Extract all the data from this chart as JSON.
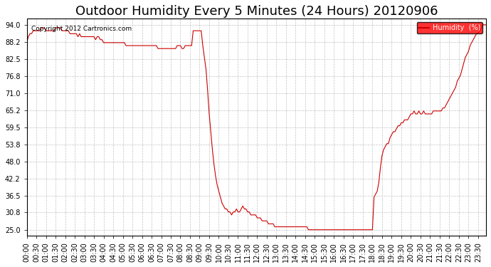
{
  "title": "Outdoor Humidity Every 5 Minutes (24 Hours) 20120906",
  "ylabel": "",
  "copyright_text": "Copyright 2012 Cartronics.com",
  "legend_label": "Humidity  (%)",
  "line_color": "#cc0000",
  "background_color": "#ffffff",
  "grid_color": "#aaaaaa",
  "yticks": [
    25.0,
    30.8,
    36.5,
    42.2,
    48.0,
    53.8,
    59.5,
    65.2,
    71.0,
    76.8,
    82.5,
    88.2,
    94.0
  ],
  "ylim": [
    23.0,
    96.0
  ],
  "xlim_start": 0,
  "xlim_end": 287,
  "xtick_interval": 6,
  "title_fontsize": 13,
  "tick_fontsize": 7,
  "humidity_data": [
    88,
    90,
    91,
    91,
    92,
    92,
    92,
    92,
    92,
    93,
    93,
    93,
    92,
    92,
    92,
    92,
    92,
    92,
    93,
    93,
    93,
    93,
    92,
    92,
    92,
    92,
    92,
    91,
    91,
    91,
    91,
    91,
    90,
    91,
    90,
    90,
    90,
    90,
    90,
    90,
    90,
    90,
    90,
    89,
    90,
    90,
    89,
    89,
    88,
    88,
    88,
    88,
    88,
    88,
    88,
    88,
    88,
    88,
    88,
    88,
    88,
    88,
    87,
    87,
    87,
    87,
    87,
    87,
    87,
    87,
    87,
    87,
    87,
    87,
    87,
    87,
    87,
    87,
    87,
    87,
    87,
    87,
    86,
    86,
    86,
    86,
    86,
    86,
    86,
    86,
    86,
    86,
    86,
    86,
    87,
    87,
    87,
    86,
    86,
    87,
    87,
    87,
    87,
    87,
    92,
    92,
    92,
    92,
    92,
    92,
    87,
    83,
    79,
    72,
    64,
    58,
    52,
    47,
    43,
    40,
    38,
    36,
    34,
    33,
    32,
    32,
    31,
    31,
    30,
    31,
    31,
    32,
    31,
    31,
    32,
    33,
    32,
    32,
    31,
    31,
    30,
    30,
    30,
    30,
    29,
    29,
    29,
    28,
    28,
    28,
    28,
    27,
    27,
    27,
    27,
    26,
    26,
    26,
    26,
    26,
    26,
    26,
    26,
    26,
    26,
    26,
    26,
    26,
    26,
    26,
    26,
    26,
    26,
    26,
    26,
    26,
    25,
    25,
    25,
    25,
    25,
    25,
    25,
    25,
    25,
    25,
    25,
    25,
    25,
    25,
    25,
    25,
    25,
    25,
    25,
    25,
    25,
    25,
    25,
    25,
    25,
    25,
    25,
    25,
    25,
    25,
    25,
    25,
    25,
    25,
    25,
    25,
    25,
    25,
    25,
    25,
    25,
    36,
    37,
    38,
    41,
    46,
    50,
    52,
    53,
    54,
    54,
    56,
    57,
    58,
    58,
    59,
    60,
    60,
    61,
    61,
    62,
    62,
    62,
    63,
    64,
    64,
    65,
    64,
    64,
    65,
    64,
    64,
    65,
    64,
    64,
    64,
    64,
    64,
    65,
    65,
    65,
    65,
    65,
    65,
    66,
    66,
    67,
    68,
    69,
    70,
    71,
    72,
    73,
    75,
    76,
    77,
    79,
    81,
    83,
    84,
    85,
    87,
    88,
    89,
    90,
    91,
    91,
    92,
    93,
    94,
    94,
    94
  ]
}
